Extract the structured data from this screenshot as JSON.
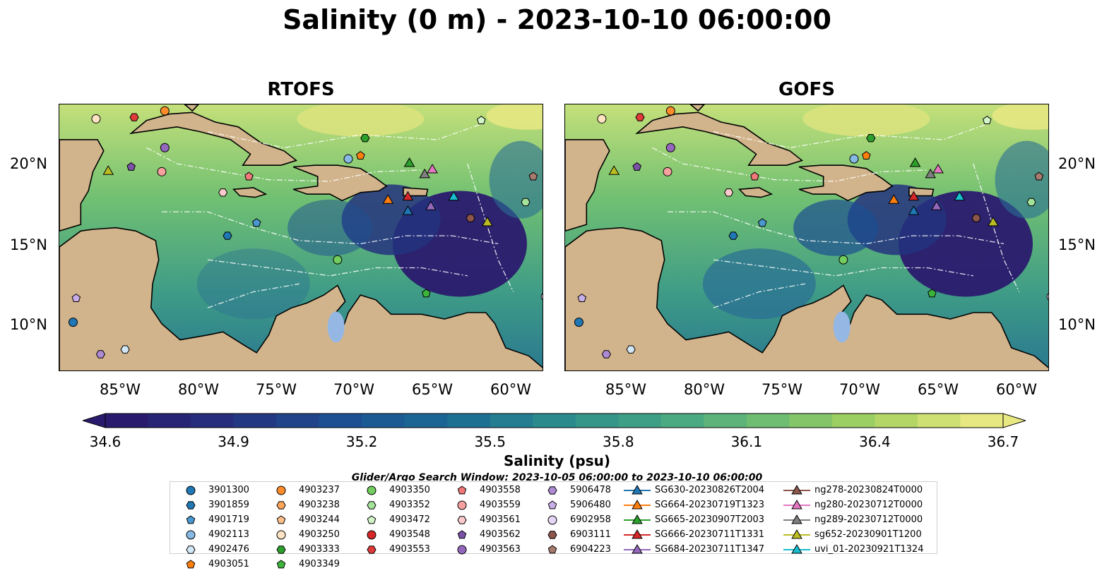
{
  "title": "Salinity (0 m) - 2023-10-10 06:00:00",
  "panels": [
    {
      "name": "RTOFS"
    },
    {
      "name": "GOFS"
    }
  ],
  "lat_labels": [
    "20°N",
    "15°N",
    "10°N"
  ],
  "lon_labels": [
    "85°W",
    "80°W",
    "75°W",
    "70°W",
    "65°W",
    "60°W"
  ],
  "colorbar": {
    "label": "Salinity (psu)",
    "ticks": [
      "34.6",
      "34.9",
      "35.2",
      "35.5",
      "35.8",
      "36.1",
      "36.4",
      "36.7"
    ],
    "min": 34.6,
    "max": 36.7,
    "colors": [
      "#2a1a6e",
      "#25327f",
      "#1d4f92",
      "#1b6a95",
      "#2a8a8c",
      "#42a585",
      "#6fbd72",
      "#a6d25f",
      "#e8e882"
    ]
  },
  "search_window": "Glider/Argo Search Window: 2023-10-05 06:00:00 to 2023-10-10 06:00:00",
  "legend": [
    {
      "label": "3901300",
      "marker": "circle",
      "color": "#1f77b4"
    },
    {
      "label": "3901859",
      "marker": "hexagon",
      "color": "#1f77b4"
    },
    {
      "label": "4901719",
      "marker": "pentagon",
      "color": "#4a98d0"
    },
    {
      "label": "4902113",
      "marker": "circle",
      "color": "#86b9e3"
    },
    {
      "label": "4902476",
      "marker": "hexagon",
      "color": "#d2e8f6"
    },
    {
      "label": "4903051",
      "marker": "pentagon",
      "color": "#ff7f0e"
    },
    {
      "label": "4903237",
      "marker": "circle",
      "color": "#ff8c2a"
    },
    {
      "label": "4903238",
      "marker": "hexagon",
      "color": "#ffa65a"
    },
    {
      "label": "4903244",
      "marker": "pentagon",
      "color": "#ffc08a"
    },
    {
      "label": "4903250",
      "marker": "circle",
      "color": "#ffe3c2"
    },
    {
      "label": "4903333",
      "marker": "hexagon",
      "color": "#2ca02c"
    },
    {
      "label": "4903349",
      "marker": "pentagon",
      "color": "#3cb43c"
    },
    {
      "label": "4903350",
      "marker": "circle",
      "color": "#72cc5e"
    },
    {
      "label": "4903352",
      "marker": "hexagon",
      "color": "#a6e39a"
    },
    {
      "label": "4903472",
      "marker": "pentagon",
      "color": "#d2f4c8"
    },
    {
      "label": "4903548",
      "marker": "circle",
      "color": "#d62728"
    },
    {
      "label": "4903553",
      "marker": "hexagon",
      "color": "#e03a3a"
    },
    {
      "label": "4903558",
      "marker": "pentagon",
      "color": "#f07878"
    },
    {
      "label": "4903559",
      "marker": "circle",
      "color": "#f7a0a0"
    },
    {
      "label": "4903561",
      "marker": "hexagon",
      "color": "#fbcaca"
    },
    {
      "label": "4903562",
      "marker": "pentagon",
      "color": "#7a52a6"
    },
    {
      "label": "4903563",
      "marker": "circle",
      "color": "#9467bd"
    },
    {
      "label": "5906478",
      "marker": "hexagon",
      "color": "#ae8ad4"
    },
    {
      "label": "5906480",
      "marker": "pentagon",
      "color": "#c8aee8"
    },
    {
      "label": "6902958",
      "marker": "circle",
      "color": "#e6d6f6"
    },
    {
      "label": "6903111",
      "marker": "hexagon",
      "color": "#8c564b"
    },
    {
      "label": "6904223",
      "marker": "pentagon",
      "color": "#a67a6c"
    },
    {
      "label": "SG630-20230826T2004",
      "marker": "triangle-line",
      "color": "#1f77b4"
    },
    {
      "label": "SG664-20230719T1323",
      "marker": "triangle-line",
      "color": "#ff7f0e"
    },
    {
      "label": "SG665-20230907T2003",
      "marker": "triangle-line",
      "color": "#2ca02c"
    },
    {
      "label": "SG666-20230711T1331",
      "marker": "triangle-line",
      "color": "#d62728"
    },
    {
      "label": "SG684-20230711T1347",
      "marker": "triangle-line",
      "color": "#9467bd"
    },
    {
      "label": "ng278-20230824T0000",
      "marker": "triangle-line",
      "color": "#8c564b"
    },
    {
      "label": "ng280-20230712T0000",
      "marker": "triangle-line",
      "color": "#e377c2"
    },
    {
      "label": "ng289-20230712T0000",
      "marker": "triangle-line",
      "color": "#7f7f7f"
    },
    {
      "label": "sg652-20230901T1200",
      "marker": "triangle-line",
      "color": "#bcbd22"
    },
    {
      "label": "uvi_01-20230921T1324",
      "marker": "triangle-line",
      "color": "#17becf"
    }
  ],
  "floats_on_map": [
    {
      "id": "4903250",
      "lon": -87.3,
      "lat": 22.8
    },
    {
      "id": "4903553",
      "lon": -84.8,
      "lat": 22.9
    },
    {
      "id": "4903237",
      "lon": -82.8,
      "lat": 23.3
    },
    {
      "id": "4903563",
      "lon": -82.8,
      "lat": 21.0
    },
    {
      "id": "sg652-20230901T1200",
      "lon": -86.5,
      "lat": 19.5
    },
    {
      "id": "4903562",
      "lon": -85.0,
      "lat": 19.8
    },
    {
      "id": "4903559",
      "lon": -83.0,
      "lat": 19.5
    },
    {
      "id": "4903561",
      "lon": -79.0,
      "lat": 18.2
    },
    {
      "id": "4903558",
      "lon": -77.3,
      "lat": 19.2
    },
    {
      "id": "4901719",
      "lon": -76.8,
      "lat": 16.3
    },
    {
      "id": "3901859",
      "lon": -78.7,
      "lat": 15.5
    },
    {
      "id": "4902113",
      "lon": -70.8,
      "lat": 20.3
    },
    {
      "id": "4903051",
      "lon": -70.0,
      "lat": 20.5
    },
    {
      "id": "4903333",
      "lon": -69.7,
      "lat": 21.6
    },
    {
      "id": "SG665-20230907T2003",
      "lon": -66.8,
      "lat": 20.0
    },
    {
      "id": "ng289-20230712T0000",
      "lon": -65.8,
      "lat": 19.3
    },
    {
      "id": "ng280-20230712T0000",
      "lon": -65.3,
      "lat": 19.6
    },
    {
      "id": "SG664-20230719T1323",
      "lon": -68.2,
      "lat": 17.7
    },
    {
      "id": "SG666-20230711T1331",
      "lon": -66.9,
      "lat": 17.9
    },
    {
      "id": "SG630-20230826T2004",
      "lon": -66.9,
      "lat": 17.0
    },
    {
      "id": "SG684-20230711T1347",
      "lon": -65.4,
      "lat": 17.3
    },
    {
      "id": "uvi_01-20230921T1324",
      "lon": -63.9,
      "lat": 17.9
    },
    {
      "id": "6903111",
      "lon": -62.8,
      "lat": 16.6
    },
    {
      "id": "4903472",
      "lon": -62.1,
      "lat": 22.7
    },
    {
      "id": "6904223",
      "lon": -58.7,
      "lat": 19.2
    },
    {
      "id": "4903352",
      "lon": -59.2,
      "lat": 17.6
    },
    {
      "id": "sg652-20230901T1200",
      "lon": -61.7,
      "lat": 16.3
    },
    {
      "id": "4903350",
      "lon": -71.5,
      "lat": 14.0
    },
    {
      "id": "4903349",
      "lon": -65.7,
      "lat": 11.9
    },
    {
      "id": "6902958",
      "lon": -57.9,
      "lat": 11.7
    },
    {
      "id": "3901300",
      "lon": -88.8,
      "lat": 10.1
    },
    {
      "id": "5906480",
      "lon": -88.6,
      "lat": 11.6
    },
    {
      "id": "5906478",
      "lon": -87.0,
      "lat": 8.1
    },
    {
      "id": "4902476",
      "lon": -85.4,
      "lat": 8.4
    }
  ]
}
